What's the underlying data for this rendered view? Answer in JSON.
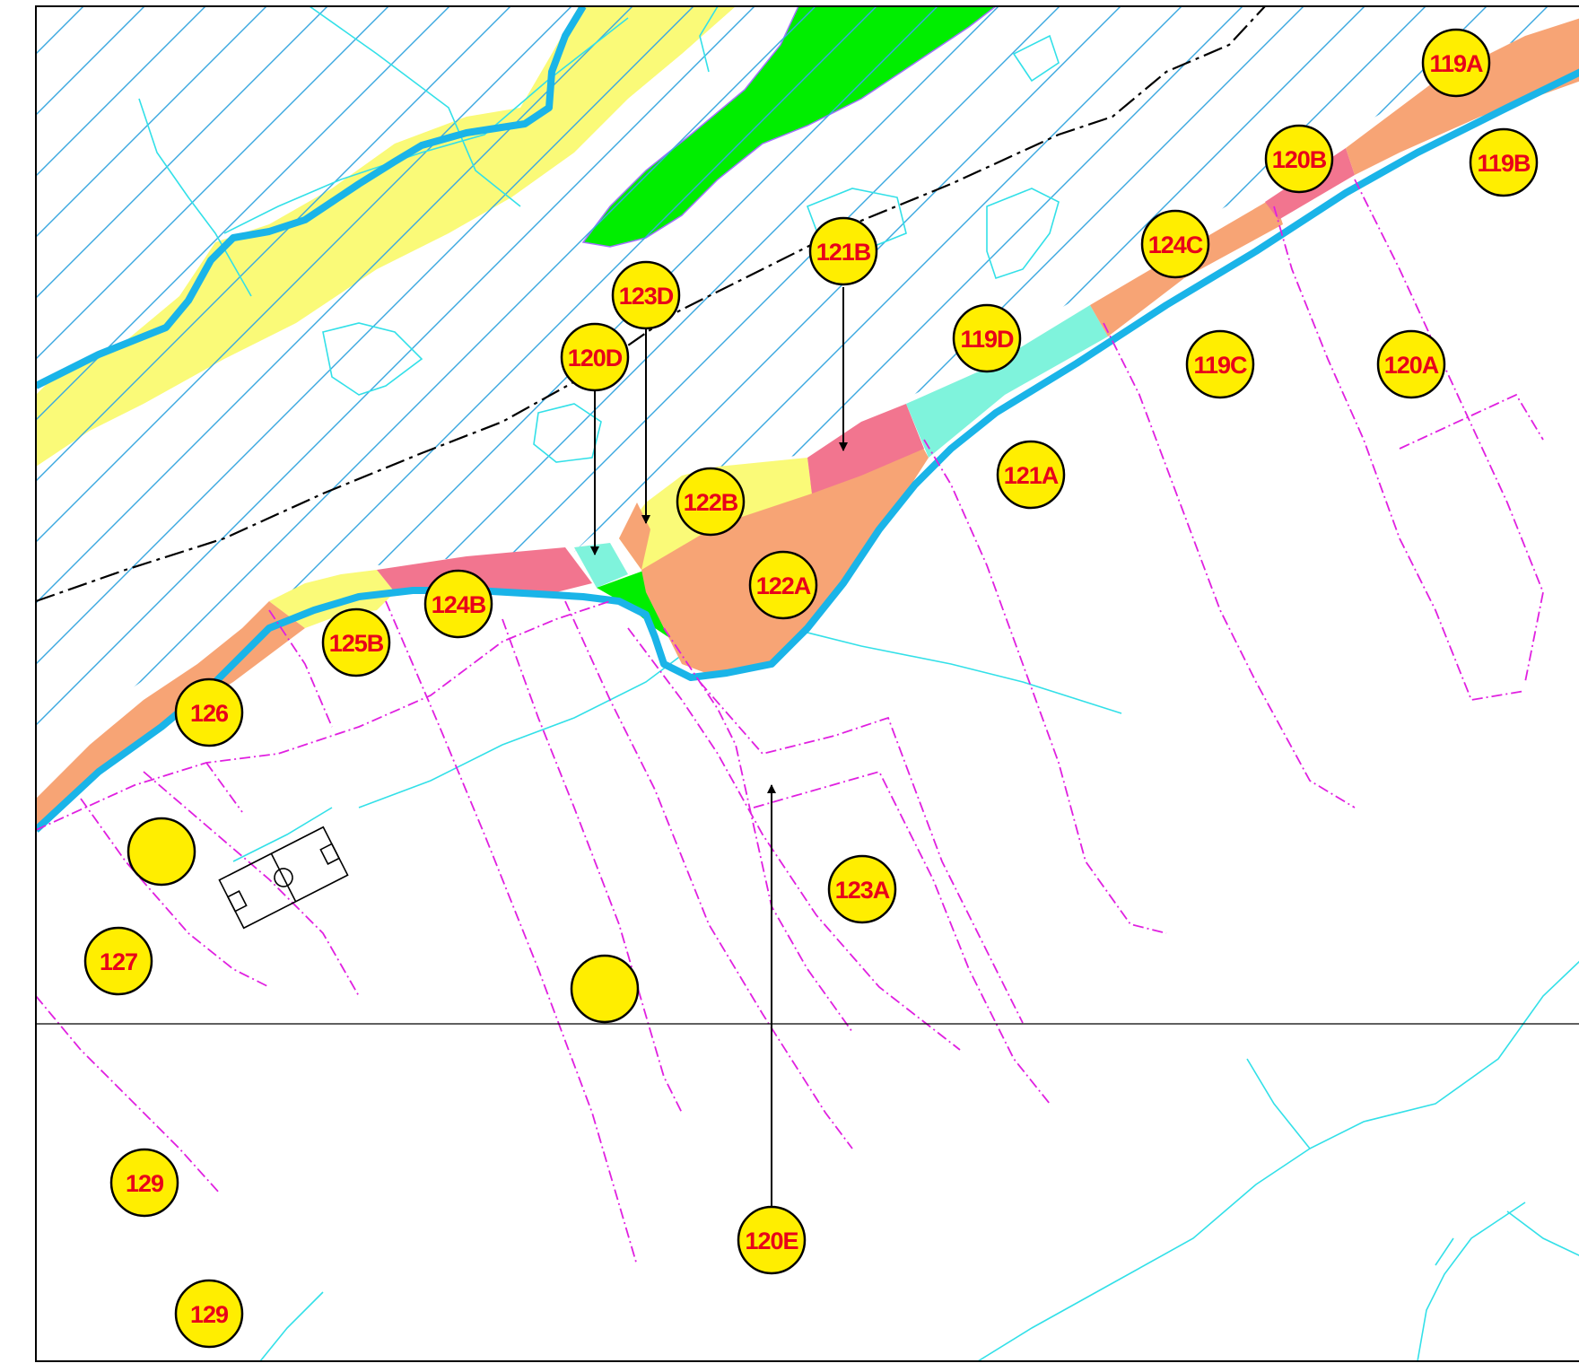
{
  "colors": {
    "marker_fill": "#ffee00",
    "label_text": "#e8001a",
    "river": "#1ab4e8",
    "stream": "#33e0e8",
    "hatch": "#3aa8e0",
    "parcel_line": "#e020e0",
    "yellow_zone": "#fafa78",
    "green_zone": "#00ee00",
    "orange_zone": "#f7a475",
    "pink_zone": "#f2758f",
    "aqua_zone": "#7ff3dc"
  },
  "markers": [
    {
      "label": "119A"
    },
    {
      "label": "120B"
    },
    {
      "label": "119B"
    },
    {
      "label": "124C"
    },
    {
      "label": "121B"
    },
    {
      "label": "123D"
    },
    {
      "label": "120D"
    },
    {
      "label": "119D"
    },
    {
      "label": "119C"
    },
    {
      "label": "120A"
    },
    {
      "label": "121A"
    },
    {
      "label": "122B"
    },
    {
      "label": "122A"
    },
    {
      "label": "124B"
    },
    {
      "label": "125B"
    },
    {
      "label": "126"
    },
    {
      "label": ""
    },
    {
      "label": "127"
    },
    {
      "label": ""
    },
    {
      "label": "123A"
    },
    {
      "label": "129"
    },
    {
      "label": "120E"
    },
    {
      "label": "129"
    }
  ],
  "icons": [
    "football-field-icon",
    "arrow-down-icon",
    "arrow-up-icon"
  ]
}
